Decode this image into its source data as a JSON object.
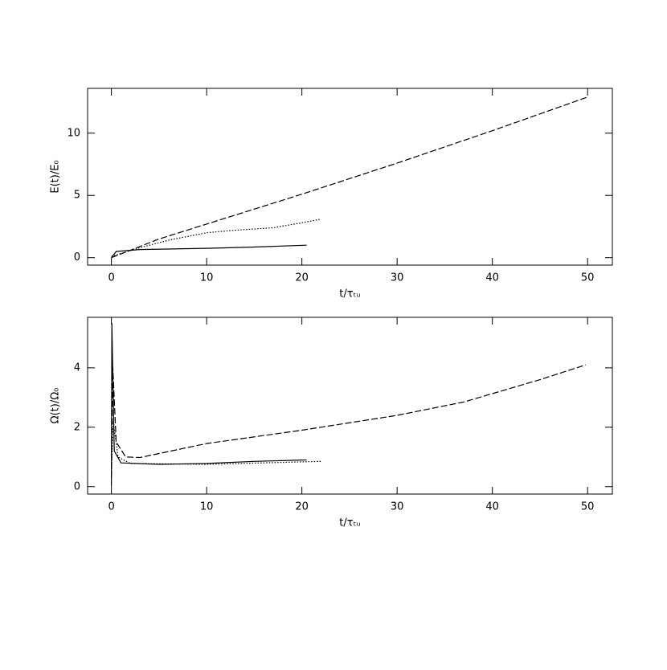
{
  "chart_data": [
    {
      "type": "line",
      "xlabel": "t/τₜᵤ",
      "ylabel": "E(t)/E₀",
      "xlim": [
        -2.5,
        52.6
      ],
      "ylim": [
        -0.6,
        13.6
      ],
      "xticks": [
        0,
        10,
        20,
        30,
        40,
        50
      ],
      "yticks": [
        0,
        5,
        10
      ],
      "series": [
        {
          "color": "#000000",
          "style": "dashed",
          "x": [
            0,
            2,
            5,
            10,
            20,
            30,
            40,
            50
          ],
          "values": [
            0,
            0.6,
            1.5,
            2.7,
            5.1,
            7.6,
            10.2,
            12.9
          ]
        },
        {
          "color": "#000000",
          "style": "dotted",
          "x": [
            0,
            3,
            6,
            10,
            13,
            17,
            20,
            22
          ],
          "values": [
            0.1,
            0.8,
            1.4,
            2.0,
            2.2,
            2.4,
            2.8,
            3.1
          ]
        },
        {
          "color": "#000000",
          "style": "solid",
          "x": [
            0,
            0.5,
            3,
            10,
            15,
            20.5
          ],
          "values": [
            0,
            0.5,
            0.65,
            0.75,
            0.85,
            1.0
          ]
        }
      ]
    },
    {
      "type": "line",
      "xlabel": "t/τₜᵤ",
      "ylabel": "Ω(t)/Ω₀",
      "xlim": [
        -2.5,
        52.6
      ],
      "ylim": [
        -0.25,
        5.7
      ],
      "xticks": [
        0,
        10,
        20,
        30,
        40,
        50
      ],
      "yticks": [
        0,
        2,
        4
      ],
      "series": [
        {
          "color": "#000000",
          "style": "dashed",
          "x": [
            0,
            0.15,
            0.5,
            1.5,
            3,
            10,
            20,
            30,
            37,
            45,
            49.8
          ],
          "values": [
            0.3,
            4.0,
            1.5,
            1.0,
            0.98,
            1.45,
            1.9,
            2.4,
            2.85,
            3.6,
            4.1
          ]
        },
        {
          "color": "#000000",
          "style": "dotted",
          "x": [
            0,
            0.2,
            0.7,
            2,
            10,
            22
          ],
          "values": [
            0.5,
            2.2,
            1.0,
            0.78,
            0.75,
            0.85
          ]
        },
        {
          "color": "#000000",
          "style": "solid",
          "x": [
            0,
            0.05,
            0.3,
            1,
            5,
            10,
            15,
            20.5
          ],
          "values": [
            0,
            5.5,
            1.2,
            0.8,
            0.75,
            0.78,
            0.85,
            0.9
          ]
        }
      ]
    }
  ]
}
